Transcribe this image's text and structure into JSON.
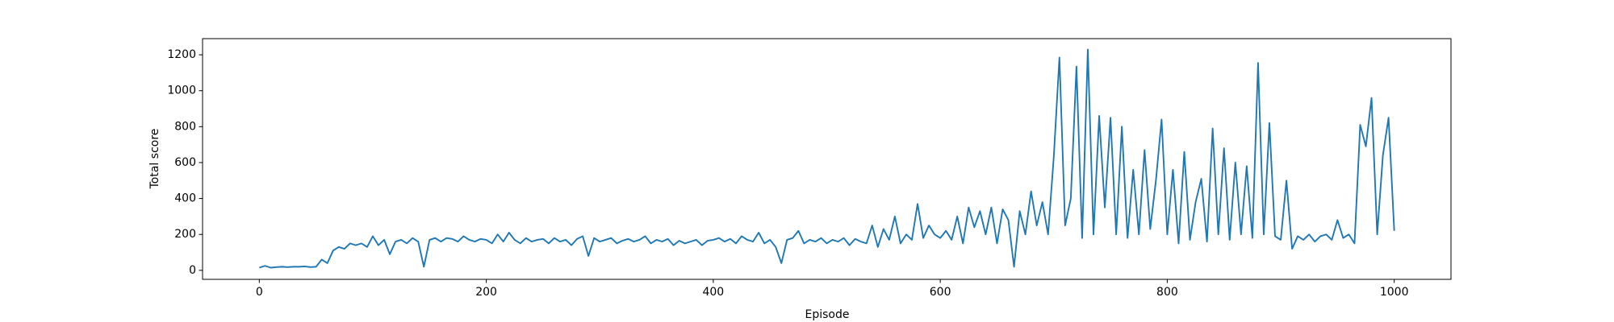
{
  "chart_data": {
    "type": "line",
    "xlabel": "Episode",
    "ylabel": "Total score",
    "x": [
      0,
      5,
      10,
      15,
      20,
      25,
      30,
      35,
      40,
      45,
      50,
      55,
      60,
      65,
      70,
      75,
      80,
      85,
      90,
      95,
      100,
      105,
      110,
      115,
      120,
      125,
      130,
      135,
      140,
      145,
      150,
      155,
      160,
      165,
      170,
      175,
      180,
      185,
      190,
      195,
      200,
      205,
      210,
      215,
      220,
      225,
      230,
      235,
      240,
      245,
      250,
      255,
      260,
      265,
      270,
      275,
      280,
      285,
      290,
      295,
      300,
      305,
      310,
      315,
      320,
      325,
      330,
      335,
      340,
      345,
      350,
      355,
      360,
      365,
      370,
      375,
      380,
      385,
      390,
      395,
      400,
      405,
      410,
      415,
      420,
      425,
      430,
      435,
      440,
      445,
      450,
      455,
      460,
      465,
      470,
      475,
      480,
      485,
      490,
      495,
      500,
      505,
      510,
      515,
      520,
      525,
      530,
      535,
      540,
      545,
      550,
      555,
      560,
      565,
      570,
      575,
      580,
      585,
      590,
      595,
      600,
      605,
      610,
      615,
      620,
      625,
      630,
      635,
      640,
      645,
      650,
      655,
      660,
      665,
      670,
      675,
      680,
      685,
      690,
      695,
      700,
      705,
      710,
      715,
      720,
      725,
      730,
      735,
      740,
      745,
      750,
      755,
      760,
      765,
      770,
      775,
      780,
      785,
      790,
      795,
      800,
      805,
      810,
      815,
      820,
      825,
      830,
      835,
      840,
      845,
      850,
      855,
      860,
      865,
      870,
      875,
      880,
      885,
      890,
      895,
      900,
      905,
      910,
      915,
      920,
      925,
      930,
      935,
      940,
      945,
      950,
      955,
      960,
      965,
      970,
      975,
      980,
      985,
      990,
      995,
      1000
    ],
    "series": [
      {
        "name": "Total score",
        "color": "#1f77b4",
        "values": [
          15,
          25,
          15,
          18,
          20,
          18,
          20,
          20,
          22,
          18,
          20,
          60,
          40,
          110,
          130,
          120,
          150,
          140,
          150,
          130,
          190,
          140,
          170,
          90,
          160,
          170,
          150,
          180,
          160,
          20,
          170,
          180,
          160,
          180,
          175,
          160,
          190,
          170,
          160,
          175,
          170,
          150,
          200,
          160,
          210,
          170,
          150,
          180,
          160,
          170,
          175,
          150,
          180,
          160,
          170,
          140,
          175,
          190,
          80,
          180,
          160,
          170,
          180,
          150,
          165,
          175,
          160,
          170,
          190,
          150,
          170,
          160,
          175,
          140,
          165,
          150,
          160,
          170,
          140,
          165,
          170,
          180,
          160,
          175,
          150,
          190,
          170,
          160,
          210,
          150,
          170,
          130,
          40,
          170,
          180,
          220,
          150,
          170,
          160,
          180,
          150,
          170,
          160,
          180,
          140,
          175,
          160,
          150,
          250,
          130,
          230,
          170,
          300,
          150,
          200,
          170,
          370,
          180,
          250,
          200,
          180,
          220,
          170,
          300,
          150,
          350,
          240,
          330,
          200,
          350,
          150,
          340,
          280,
          20,
          330,
          200,
          440,
          250,
          380,
          200,
          630,
          1185,
          250,
          400,
          1135,
          180,
          1230,
          200,
          860,
          350,
          850,
          200,
          800,
          180,
          560,
          200,
          670,
          230,
          500,
          840,
          200,
          560,
          150,
          660,
          170,
          380,
          510,
          160,
          790,
          200,
          680,
          170,
          600,
          200,
          580,
          180,
          1155,
          200,
          820,
          190,
          170,
          500,
          120,
          190,
          170,
          200,
          160,
          190,
          200,
          170,
          280,
          180,
          200,
          150,
          810,
          690,
          960,
          200,
          640,
          850,
          220
        ]
      }
    ],
    "xlim": [
      -50,
      1050
    ],
    "ylim": [
      -50,
      1290
    ],
    "xticks": [
      0,
      200,
      400,
      600,
      800,
      1000
    ],
    "yticks": [
      0,
      200,
      400,
      600,
      800,
      1000,
      1200
    ]
  }
}
